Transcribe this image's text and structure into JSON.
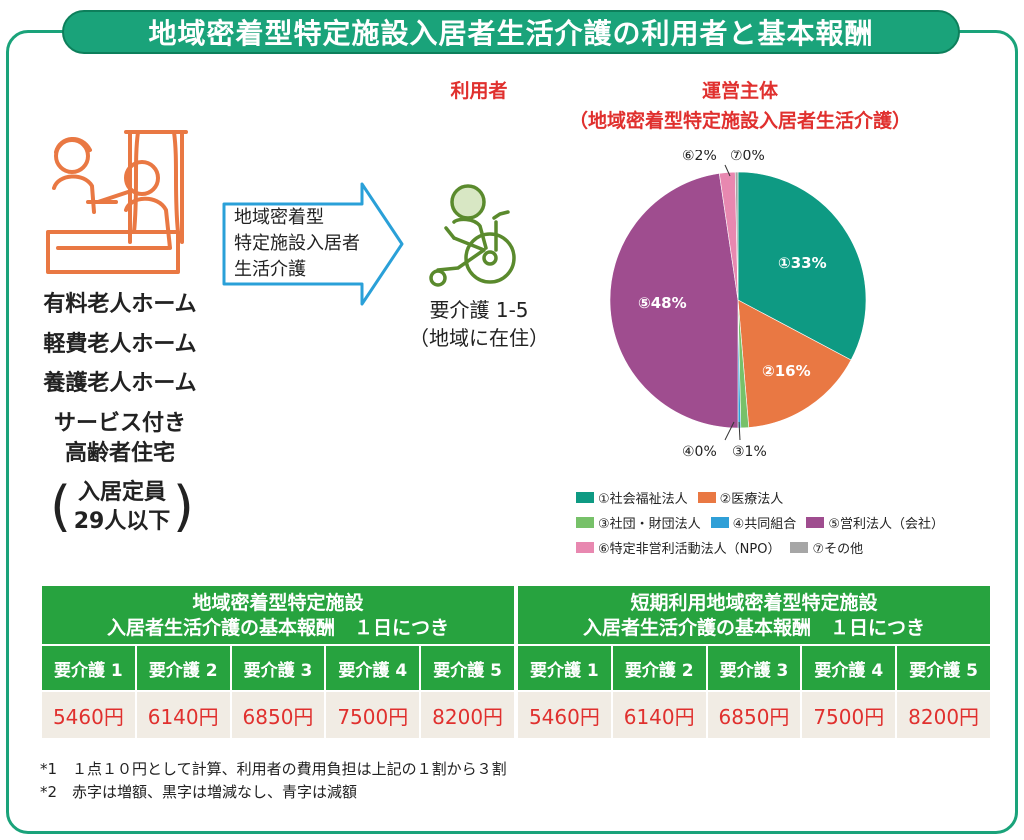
{
  "title": "地域密着型特定施設入居者生活介護の利用者と基本報酬",
  "facilities": {
    "items": [
      "有料老人ホーム",
      "軽費老人ホーム",
      "養護老人ホーム",
      "サービス付き\n高齢者住宅"
    ],
    "capacity": "入居定員\n29人以下"
  },
  "arrow_label": "地域密着型\n特定施設入居者\n生活介護",
  "user": {
    "heading": "利用者",
    "care_level": "要介護 1-5",
    "residence": "（地域に在住）"
  },
  "operator": {
    "heading": "運営主体",
    "subheading": "（地域密着型特定施設入居者生活介護）"
  },
  "chart_data": {
    "type": "pie",
    "slices": [
      {
        "label": "①社会福祉法人",
        "value": 33,
        "color": "#0e9a83"
      },
      {
        "label": "②医療法人",
        "value": 16,
        "color": "#e97843"
      },
      {
        "label": "③社団・財団法人",
        "value": 1,
        "color": "#77c169"
      },
      {
        "label": "④共同組合",
        "value": 0,
        "color": "#2f9fd7"
      },
      {
        "label": "⑤営利法人（会社）",
        "value": 48,
        "color": "#9f4d8f"
      },
      {
        "label": "⑥特定非営利活動法人（NPO）",
        "value": 2,
        "color": "#e888b0"
      },
      {
        "label": "⑦その他",
        "value": 0,
        "color": "#a6a6a6"
      }
    ],
    "data_labels": {
      "s1": "①33%",
      "s2": "②16%",
      "s3": "③1%",
      "s4": "④0%",
      "s5": "⑤48%",
      "s6": "⑥2%",
      "s7": "⑦0%"
    }
  },
  "fee_tables": [
    {
      "heading": "地域密着型特定施設\n入居者生活介護の基本報酬　１日につき",
      "levels": [
        "要介護 1",
        "要介護 2",
        "要介護 3",
        "要介護 4",
        "要介護 5"
      ],
      "prices": [
        "5460円",
        "6140円",
        "6850円",
        "7500円",
        "8200円"
      ]
    },
    {
      "heading": "短期利用地域密着型特定施設\n入居者生活介護の基本報酬　１日につき",
      "levels": [
        "要介護 1",
        "要介護 2",
        "要介護 3",
        "要介護 4",
        "要介護 5"
      ],
      "prices": [
        "5460円",
        "6140円",
        "6850円",
        "7500円",
        "8200円"
      ]
    }
  ],
  "notes": [
    "*1　１点１０円として計算、利用者の費用負担は上記の１割から３割",
    "*2　赤字は増額、黒字は増減なし、青字は減額"
  ]
}
